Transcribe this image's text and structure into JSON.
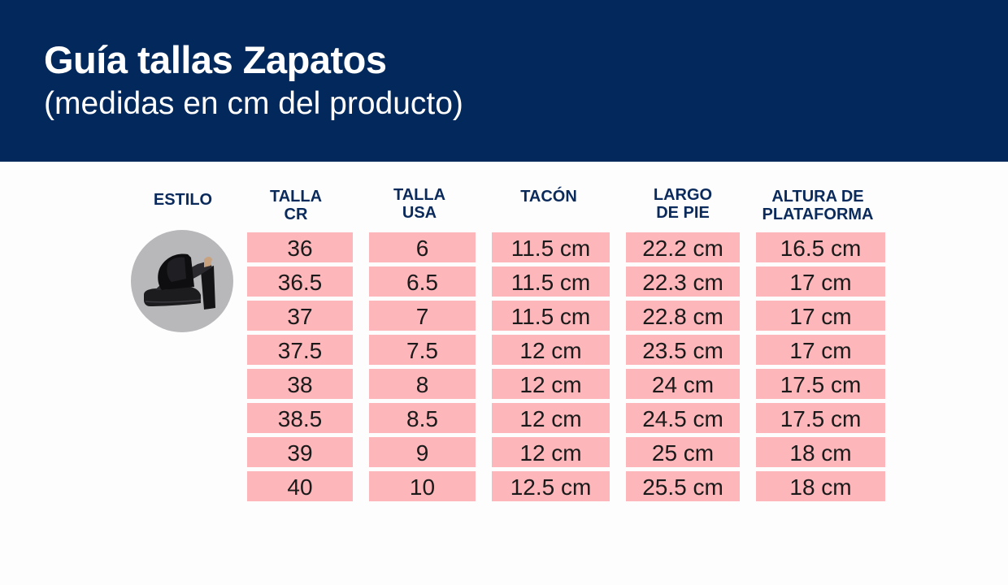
{
  "header": {
    "title": "Guía tallas Zapatos",
    "subtitle": "(medidas en cm del producto)"
  },
  "table": {
    "columns": [
      {
        "key": "estilo",
        "label": "ESTILO"
      },
      {
        "key": "talla_cr",
        "label": "TALLA\nCR"
      },
      {
        "key": "talla_usa",
        "label": "TALLA\nUSA"
      },
      {
        "key": "tacon",
        "label": "TACÓN"
      },
      {
        "key": "largo_pie",
        "label": "LARGO\nDE PIE"
      },
      {
        "key": "altura_plataforma",
        "label": "ALTURA DE\nPLATAFORMA"
      }
    ],
    "style_image": "black-platform-mule-heel-icon",
    "rows": [
      {
        "talla_cr": "36",
        "talla_usa": "6",
        "tacon": "11.5 cm",
        "largo_pie": "22.2 cm",
        "altura_plataforma": "16.5 cm"
      },
      {
        "talla_cr": "36.5",
        "talla_usa": "6.5",
        "tacon": "11.5 cm",
        "largo_pie": "22.3 cm",
        "altura_plataforma": "17 cm"
      },
      {
        "talla_cr": "37",
        "talla_usa": "7",
        "tacon": "11.5 cm",
        "largo_pie": "22.8 cm",
        "altura_plataforma": "17 cm"
      },
      {
        "talla_cr": "37.5",
        "talla_usa": "7.5",
        "tacon": "12 cm",
        "largo_pie": "23.5 cm",
        "altura_plataforma": "17 cm"
      },
      {
        "talla_cr": "38",
        "talla_usa": "8",
        "tacon": "12 cm",
        "largo_pie": "24 cm",
        "altura_plataforma": "17.5 cm"
      },
      {
        "talla_cr": "38.5",
        "talla_usa": "8.5",
        "tacon": "12 cm",
        "largo_pie": "24.5 cm",
        "altura_plataforma": "17.5 cm"
      },
      {
        "talla_cr": "39",
        "talla_usa": "9",
        "tacon": "12 cm",
        "largo_pie": "25 cm",
        "altura_plataforma": "18 cm"
      },
      {
        "talla_cr": "40",
        "talla_usa": "10",
        "tacon": "12.5 cm",
        "largo_pie": "25.5 cm",
        "altura_plataforma": "18 cm"
      }
    ]
  },
  "colors": {
    "header_bg": "#03285b",
    "header_text": "#ffffff",
    "column_header_text": "#0b2a5c",
    "cell_bg": "#fdb6ba",
    "cell_text": "#1a1a1a",
    "page_bg": "#fdfdfd",
    "image_circle_bg": "#b8b8bb"
  }
}
